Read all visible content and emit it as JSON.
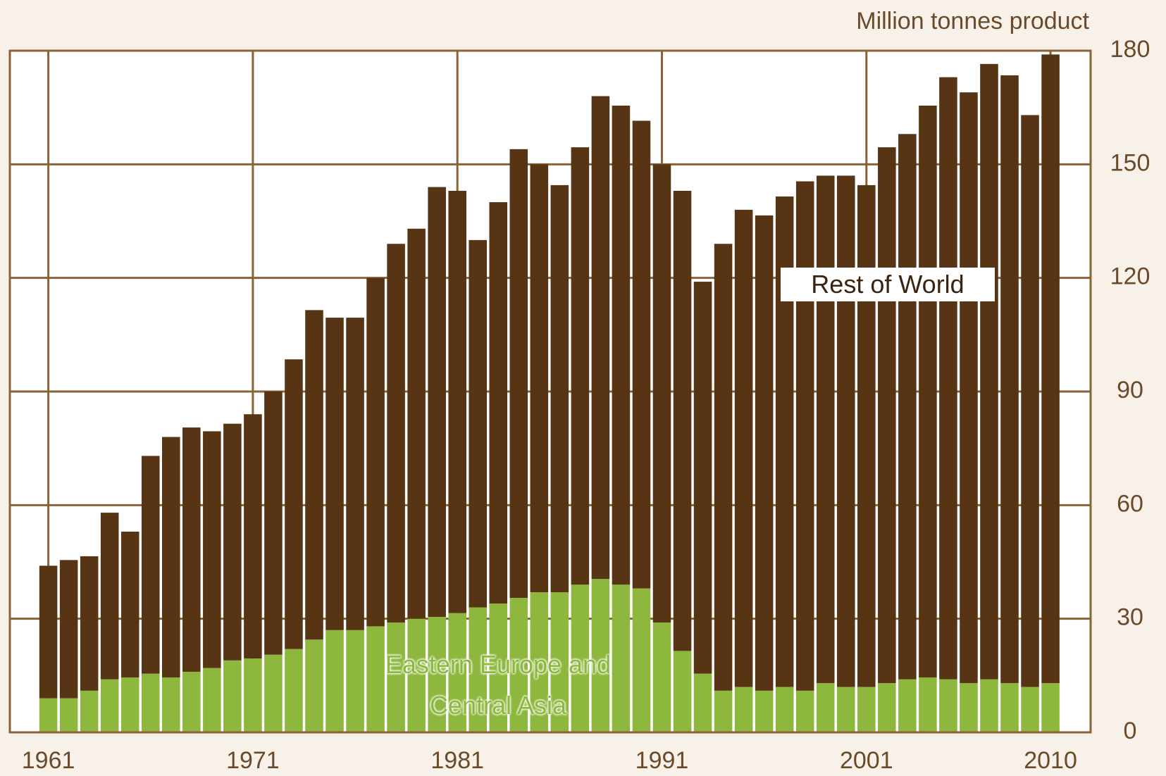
{
  "chart_data": {
    "type": "stacked_bar",
    "y_axis_label": "Million tonnes product",
    "categories": [
      "1961",
      null,
      null,
      null,
      null,
      null,
      null,
      null,
      null,
      null,
      "1971",
      null,
      null,
      null,
      null,
      null,
      null,
      null,
      null,
      null,
      "1981",
      null,
      null,
      null,
      null,
      null,
      null,
      null,
      null,
      null,
      "1991",
      null,
      null,
      null,
      null,
      null,
      null,
      null,
      null,
      null,
      "2001",
      null,
      null,
      null,
      null,
      null,
      null,
      null,
      null,
      "2010"
    ],
    "series": [
      {
        "name": "Eastern Europe and Central Asia",
        "color": "#8db83d",
        "values": [
          9,
          9,
          11,
          14,
          14.5,
          15.5,
          14.5,
          16,
          17,
          19,
          19.5,
          20.5,
          22,
          24.5,
          27,
          27,
          28,
          29,
          30,
          30.5,
          31.5,
          33,
          34,
          35.5,
          37,
          37,
          39,
          40.5,
          39,
          38,
          29,
          21.5,
          15.5,
          11,
          12,
          11,
          12,
          11,
          13,
          12,
          12,
          13,
          14,
          14.5,
          14,
          13,
          14,
          13,
          12,
          13
        ]
      },
      {
        "name": "Rest of World",
        "color": "#573414",
        "values": [
          35,
          36.5,
          35.5,
          44,
          38.5,
          57.5,
          63.5,
          64.5,
          62.5,
          62.5,
          64.5,
          69.5,
          76.5,
          87,
          82.5,
          82.5,
          92,
          100,
          103,
          113.5,
          111.5,
          97,
          106,
          118.5,
          113,
          107.5,
          115.5,
          127.5,
          126.5,
          123.5,
          121,
          121.5,
          103.5,
          118,
          126,
          125.5,
          129.5,
          134.5,
          134,
          135,
          132.5,
          141.5,
          144,
          151,
          159,
          156,
          162.5,
          160.5,
          151,
          166
        ]
      }
    ],
    "ylim": [
      0,
      180
    ],
    "yticks": [
      0,
      30,
      60,
      90,
      120,
      150,
      180
    ],
    "grid": true,
    "y_axis_side": "right"
  }
}
